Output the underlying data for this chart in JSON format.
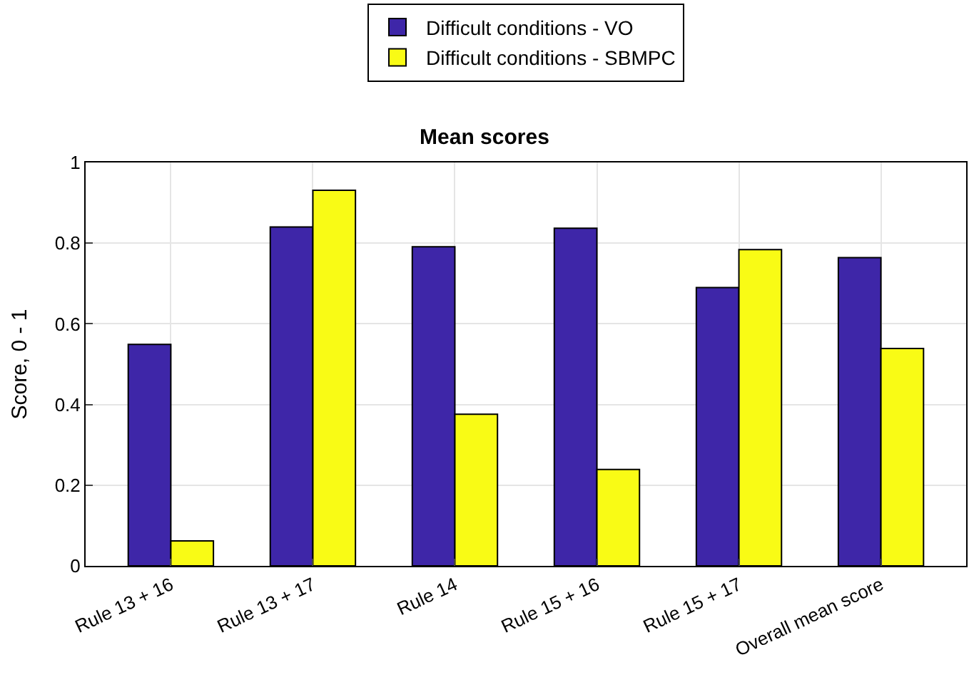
{
  "chart_data": {
    "type": "bar",
    "title": "Mean scores",
    "ylabel": "Score, 0 - 1",
    "categories": [
      "Rule 13 + 16",
      "Rule 13 + 17",
      "Rule 14",
      "Rule 15 + 16",
      "Rule 15 + 17",
      "Overall mean score"
    ],
    "series": [
      {
        "name": "Difficult conditions - VO",
        "color": "#3e26a8",
        "values": [
          0.549,
          0.84,
          0.791,
          0.837,
          0.69,
          0.764
        ]
      },
      {
        "name": "Difficult conditions - SBMPC",
        "color": "#f9fb15",
        "values": [
          0.062,
          0.931,
          0.376,
          0.239,
          0.784,
          0.539
        ]
      }
    ],
    "ylim": [
      0,
      1
    ],
    "yticks": [
      0,
      0.2,
      0.4,
      0.6,
      0.8,
      1
    ],
    "grid": true,
    "legend": "top"
  }
}
